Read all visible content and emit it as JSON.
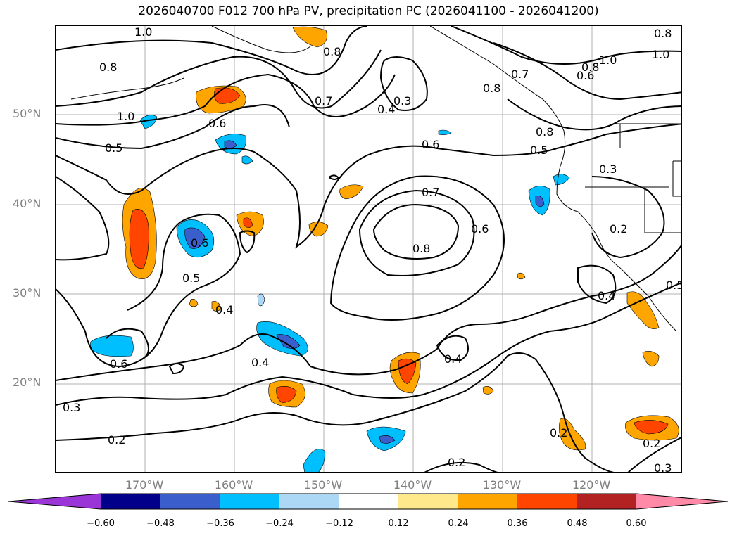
{
  "title": "2026040700 F012 700 hPa PV, precipitation PC (2026041100 - 2026041200)",
  "lat_labels": [
    "50°N",
    "40°N",
    "30°N",
    "20°N"
  ],
  "lon_labels": [
    "170°W",
    "160°W",
    "150°W",
    "140°W",
    "130°W",
    "120°W"
  ],
  "colorbar": {
    "ticks": [
      "−0.60",
      "−0.48",
      "−0.36",
      "−0.24",
      "−0.12",
      "0.12",
      "0.24",
      "0.36",
      "0.48",
      "0.60"
    ],
    "colors": [
      "#9a36d8",
      "#00008b",
      "#3a5fcd",
      "#00bfff",
      "#add8f5",
      "#ffffff",
      "#ffe98a",
      "#ffa500",
      "#ff4500",
      "#b22222",
      "#ff8aa8"
    ]
  },
  "contour_labels": [
    "1.0",
    "0.8",
    "0.7",
    "0.6",
    "0.5",
    "0.4",
    "0.3",
    "0.2"
  ]
}
